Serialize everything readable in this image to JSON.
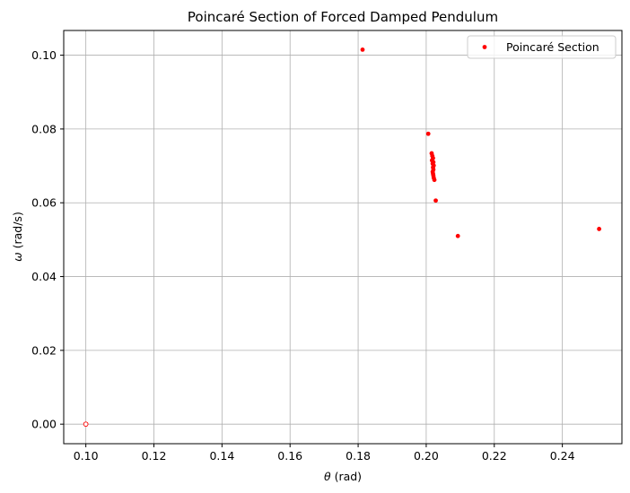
{
  "chart_data": {
    "type": "scatter",
    "title": "Poincaré Section of Forced Damped Pendulum",
    "xlabel_symbol": "θ",
    "xlabel_unit": " (rad)",
    "ylabel_symbol": "ω",
    "ylabel_unit": " (rad/s)",
    "xlim": [
      0.0935,
      0.2575
    ],
    "ylim": [
      -0.0053,
      0.1067
    ],
    "xticks": [
      0.1,
      0.12,
      0.14,
      0.16,
      0.18,
      0.2,
      0.22,
      0.24
    ],
    "xtick_labels": [
      "0.10",
      "0.12",
      "0.14",
      "0.16",
      "0.18",
      "0.20",
      "0.22",
      "0.24"
    ],
    "yticks": [
      0.0,
      0.02,
      0.04,
      0.06,
      0.08,
      0.1
    ],
    "ytick_labels": [
      "0.00",
      "0.02",
      "0.04",
      "0.06",
      "0.08",
      "0.10"
    ],
    "grid": true,
    "legend_position": "top-right",
    "series": [
      {
        "name": "Poincaré Section",
        "color": "#ff0000",
        "points": [
          {
            "x": 0.1,
            "y": 0.0,
            "hollow": true
          },
          {
            "x": 0.1813,
            "y": 0.1015
          },
          {
            "x": 0.2006,
            "y": 0.0787
          },
          {
            "x": 0.2016,
            "y": 0.0734
          },
          {
            "x": 0.2018,
            "y": 0.0727
          },
          {
            "x": 0.202,
            "y": 0.0721
          },
          {
            "x": 0.2017,
            "y": 0.0715
          },
          {
            "x": 0.2021,
            "y": 0.071
          },
          {
            "x": 0.2019,
            "y": 0.0706
          },
          {
            "x": 0.2022,
            "y": 0.0701
          },
          {
            "x": 0.202,
            "y": 0.0696
          },
          {
            "x": 0.2021,
            "y": 0.069
          },
          {
            "x": 0.2019,
            "y": 0.0684
          },
          {
            "x": 0.202,
            "y": 0.0679
          },
          {
            "x": 0.2021,
            "y": 0.0674
          },
          {
            "x": 0.2022,
            "y": 0.0668
          },
          {
            "x": 0.2024,
            "y": 0.0662
          },
          {
            "x": 0.2028,
            "y": 0.0606
          },
          {
            "x": 0.2093,
            "y": 0.051
          },
          {
            "x": 0.2508,
            "y": 0.0529
          }
        ]
      }
    ]
  }
}
